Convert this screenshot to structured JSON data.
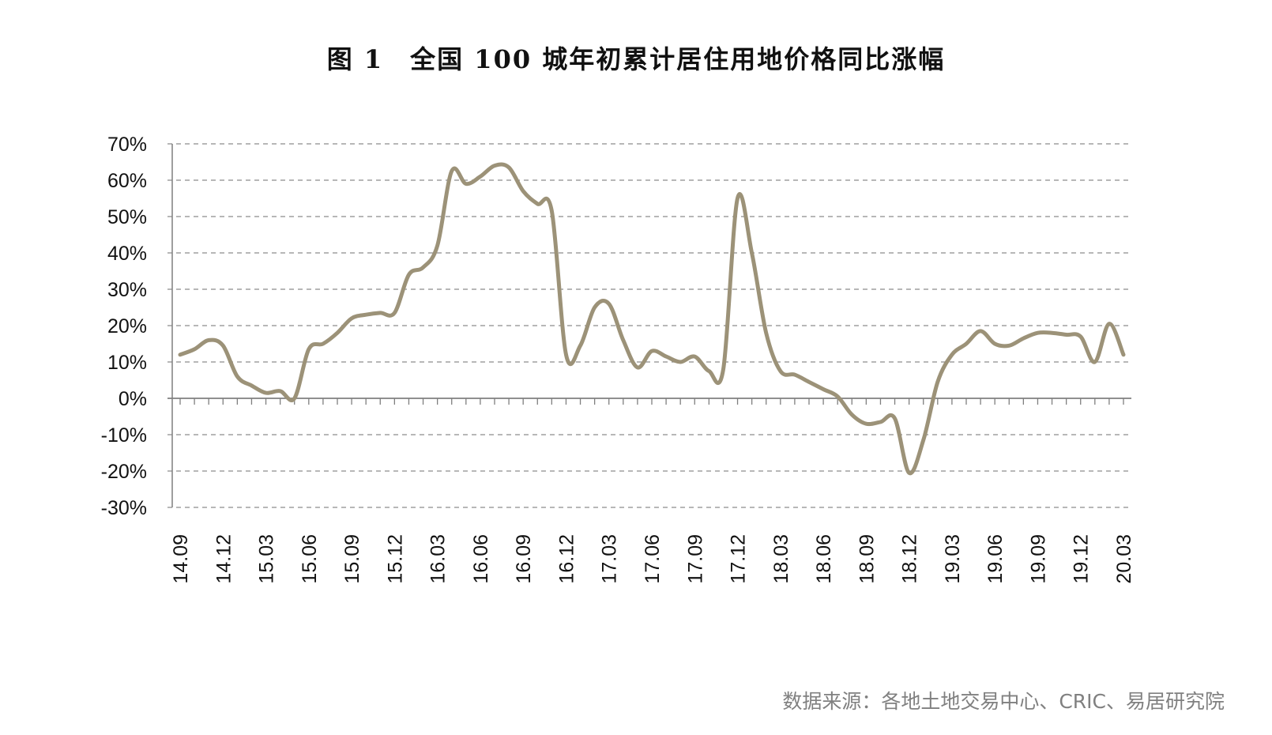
{
  "title": "图 1　全国 100 城年初累计居住用地价格同比涨幅",
  "source": "数据来源：各地土地交易中心、CRIC、易居研究院",
  "colors": {
    "line": "#9C9278",
    "grid": "#8c8c8c",
    "axis": "#7f7f7f"
  },
  "chart_data": {
    "type": "line",
    "title": "图 1　全国 100 城年初累计居住用地价格同比涨幅",
    "xlabel": "",
    "ylabel": "",
    "ylim": [
      -30,
      70
    ],
    "y_ticks": [
      -30,
      -20,
      -10,
      0,
      10,
      20,
      30,
      40,
      50,
      60,
      70
    ],
    "y_tick_labels": [
      "-30%",
      "-20%",
      "-10%",
      "0%",
      "10%",
      "20%",
      "30%",
      "40%",
      "50%",
      "60%",
      "70%"
    ],
    "grid": "horizontal dashed",
    "x_tick_labels": [
      "14.09",
      "14.12",
      "15.03",
      "15.06",
      "15.09",
      "15.12",
      "16.03",
      "16.06",
      "16.09",
      "16.12",
      "17.03",
      "17.06",
      "17.09",
      "17.12",
      "18.03",
      "18.06",
      "18.09",
      "18.12",
      "19.03",
      "19.06",
      "19.09",
      "19.12",
      "20.03"
    ],
    "x": [
      "14.09",
      "14.10",
      "14.11",
      "14.12",
      "15.01",
      "15.02",
      "15.03",
      "15.04",
      "15.05",
      "15.06",
      "15.07",
      "15.08",
      "15.09",
      "15.10",
      "15.11",
      "15.12",
      "16.01",
      "16.02",
      "16.03",
      "16.04",
      "16.05",
      "16.06",
      "16.07",
      "16.08",
      "16.09",
      "16.10",
      "16.11",
      "16.12",
      "17.01",
      "17.02",
      "17.03",
      "17.04",
      "17.05",
      "17.06",
      "17.07",
      "17.08",
      "17.09",
      "17.10",
      "17.11",
      "17.12",
      "18.01",
      "18.02",
      "18.03",
      "18.04",
      "18.05",
      "18.06",
      "18.07",
      "18.08",
      "18.09",
      "18.10",
      "18.11",
      "18.12",
      "19.01",
      "19.02",
      "19.03",
      "19.04",
      "19.05",
      "19.06",
      "19.07",
      "19.08",
      "19.09",
      "19.10",
      "19.11",
      "19.12",
      "20.01",
      "20.02",
      "20.03"
    ],
    "series": [
      {
        "values": [
          12,
          13.5,
          16,
          14.5,
          6,
          3.5,
          1.5,
          2,
          0,
          13.5,
          15,
          18,
          22,
          23,
          23.5,
          23.5,
          34,
          36,
          42,
          62.5,
          59,
          61,
          64,
          63.5,
          57,
          53.5,
          51.5,
          12,
          14.5,
          25,
          26,
          16,
          8.5,
          13,
          11.5,
          10,
          11.5,
          7.5,
          8,
          55,
          40,
          18,
          7.5,
          6.5,
          4.5,
          2.5,
          0.5,
          -4.5,
          -7,
          -6.5,
          -5.5,
          -20.5,
          -11.5,
          4.5,
          12,
          15,
          18.5,
          15,
          14.5,
          16.5,
          18,
          18,
          17.5,
          17,
          10,
          20.5,
          12
        ]
      }
    ]
  }
}
